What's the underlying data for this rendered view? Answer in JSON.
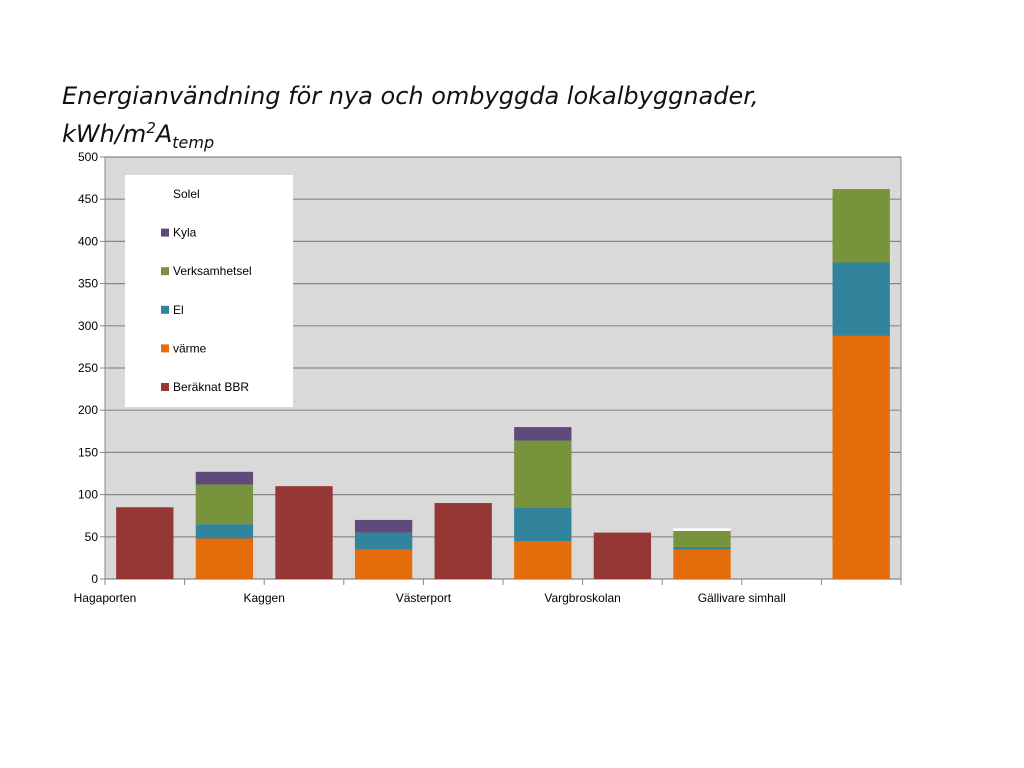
{
  "title": {
    "line1": "Energianvändning för nya och ombyggda lokalbyggnader,",
    "line2_main": "kWh/m",
    "line2_sup": "2",
    "line2_a": "A",
    "line2_sub": "temp"
  },
  "colors": {
    "plot_bg": "#d9d9d9",
    "grid": "#888888",
    "solel": "#ffffff",
    "kyla": "#5f4a7b",
    "verksamhetsel": "#77933c",
    "el": "#31849b",
    "varme": "#e46c0a",
    "beraknat_bbr": "#953735"
  },
  "chart_data": {
    "type": "bar",
    "stacked": true,
    "categories": [
      "Hagaporten",
      "Kaggen",
      "Västerport",
      "Vargbroskolan",
      "Gällivare simhall"
    ],
    "ylim": [
      0,
      500
    ],
    "yticks": [
      0,
      50,
      100,
      150,
      200,
      250,
      300,
      350,
      400,
      450,
      500
    ],
    "legend_position": "top-left",
    "grid": true,
    "xlabel": "",
    "ylabel": "",
    "legend": [
      "Solel",
      "Kyla",
      "Verksamhetsel",
      "El",
      "värme",
      "Beräknat BBR"
    ],
    "bbr_series": {
      "name": "Beräknat BBR",
      "color_key": "beraknat_bbr",
      "values": [
        85,
        110,
        90,
        55,
        0
      ]
    },
    "stacked_series": [
      {
        "name": "värme",
        "color_key": "varme",
        "values": [
          48,
          35,
          45,
          35,
          288
        ]
      },
      {
        "name": "El",
        "color_key": "el",
        "values": [
          17,
          20,
          40,
          3,
          87
        ]
      },
      {
        "name": "Verksamhetsel",
        "color_key": "verksamhetsel",
        "values": [
          47,
          0,
          79,
          19,
          87
        ]
      },
      {
        "name": "Kyla",
        "color_key": "kyla",
        "values": [
          15,
          15,
          16,
          0,
          0
        ]
      },
      {
        "name": "Solel",
        "color_key": "solel",
        "values": [
          0,
          0,
          0,
          3,
          0
        ]
      }
    ]
  }
}
